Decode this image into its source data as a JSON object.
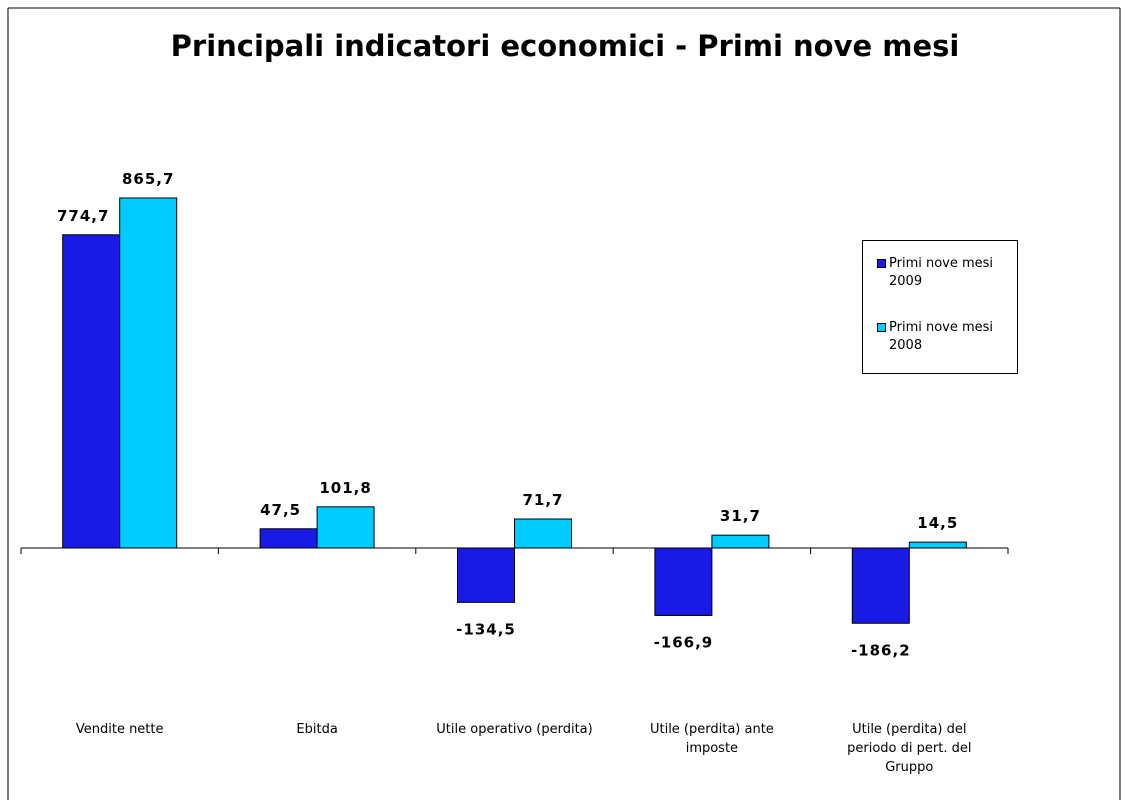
{
  "chart_data": {
    "type": "bar",
    "title": "Principali indicatori economici - Primi nove mesi",
    "categories": [
      "Vendite nette",
      "Ebitda",
      "Utile operativo (perdita)",
      "Utile (perdita) ante imposte",
      "Utile (perdita) del periodo di pert. del Gruppo"
    ],
    "series": [
      {
        "name": "Primi nove mesi 2009",
        "color": "#1a1ae6",
        "values": [
          774.7,
          47.5,
          -134.5,
          -166.9,
          -186.2
        ],
        "value_labels": [
          "774,7",
          "47,5",
          "-134,5",
          "-166,9",
          "-186,2"
        ]
      },
      {
        "name": "Primi nove mesi 2008",
        "color": "#00ccff",
        "values": [
          865.7,
          101.8,
          71.7,
          31.7,
          14.5
        ],
        "value_labels": [
          "865,7",
          "101,8",
          "71,7",
          "31,7",
          "14,5"
        ]
      }
    ],
    "ylim": [
      -400,
      1000
    ],
    "legend": "right"
  }
}
